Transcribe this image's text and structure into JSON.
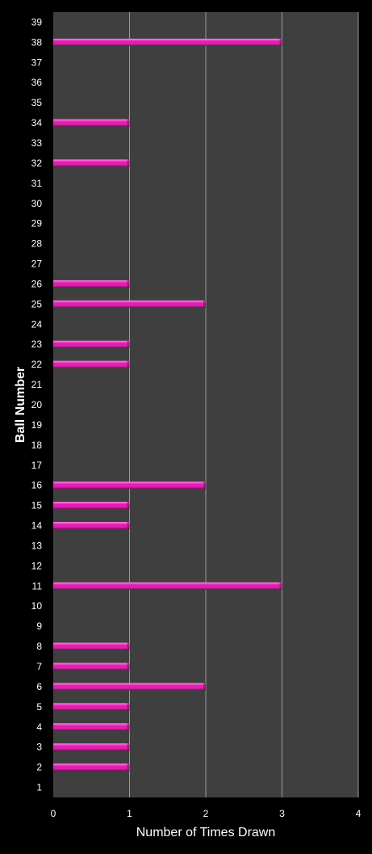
{
  "chart_data": {
    "type": "bar",
    "orientation": "horizontal",
    "xlabel": "Number of Times Drawn",
    "ylabel": "Ball Number",
    "xlim": [
      0,
      4
    ],
    "x_ticks": [
      "0",
      "1",
      "2",
      "3",
      "4"
    ],
    "grid": true,
    "categories": [
      "1",
      "2",
      "3",
      "4",
      "5",
      "6",
      "7",
      "8",
      "9",
      "10",
      "11",
      "12",
      "13",
      "14",
      "15",
      "16",
      "17",
      "18",
      "19",
      "20",
      "21",
      "22",
      "23",
      "24",
      "25",
      "26",
      "27",
      "28",
      "29",
      "30",
      "31",
      "32",
      "33",
      "34",
      "35",
      "36",
      "37",
      "38",
      "39"
    ],
    "values": [
      0,
      1,
      1,
      1,
      1,
      2,
      1,
      1,
      0,
      0,
      3,
      0,
      0,
      1,
      1,
      2,
      0,
      0,
      0,
      0,
      0,
      1,
      1,
      0,
      2,
      1,
      0,
      0,
      0,
      0,
      0,
      1,
      0,
      1,
      0,
      0,
      0,
      3,
      0
    ]
  },
  "colors": {
    "page_background": "#000000",
    "plot_background": "#3f3f3f",
    "gridline": "#9a9a9a",
    "bar_fill": "#e020b0",
    "bar_highlight": "#ff8ae6",
    "bar_shadow": "#7a0a5c",
    "text": "#ffffff"
  }
}
